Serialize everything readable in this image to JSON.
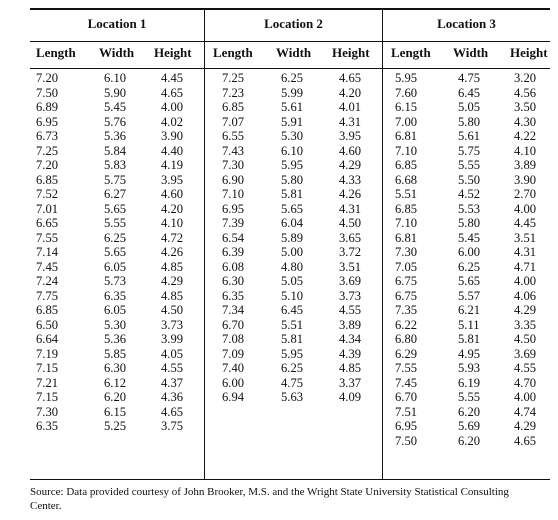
{
  "groups": [
    "Location 1",
    "Location 2",
    "Location 3"
  ],
  "columns": [
    "Length",
    "Width",
    "Height"
  ],
  "location1": {
    "length": [
      "7.20",
      "7.50",
      "6.89",
      "6.95",
      "6.73",
      "7.25",
      "7.20",
      "6.85",
      "7.52",
      "7.01",
      "6.65",
      "7.55",
      "7.14",
      "7.45",
      "7.24",
      "7.75",
      "6.85",
      "6.50",
      "6.64",
      "7.19",
      "7.15",
      "7.21",
      "7.15",
      "7.30",
      "6.35"
    ],
    "width": [
      "6.10",
      "5.90",
      "5.45",
      "5.76",
      "5.36",
      "5.84",
      "5.83",
      "5.75",
      "6.27",
      "5.65",
      "5.55",
      "6.25",
      "5.65",
      "6.05",
      "5.73",
      "6.35",
      "6.05",
      "5.30",
      "5.36",
      "5.85",
      "6.30",
      "6.12",
      "6.20",
      "6.15",
      "5.25"
    ],
    "height": [
      "4.45",
      "4.65",
      "4.00",
      "4.02",
      "3.90",
      "4.40",
      "4.19",
      "3.95",
      "4.60",
      "4.20",
      "4.10",
      "4.72",
      "4.26",
      "4.85",
      "4.29",
      "4.85",
      "4.50",
      "3.73",
      "3.99",
      "4.05",
      "4.55",
      "4.37",
      "4.36",
      "4.65",
      "3.75"
    ]
  },
  "location2": {
    "length": [
      "7.25",
      "7.23",
      "6.85",
      "7.07",
      "6.55",
      "7.43",
      "7.30",
      "6.90",
      "7.10",
      "6.95",
      "7.39",
      "6.54",
      "6.39",
      "6.08",
      "6.30",
      "6.35",
      "7.34",
      "6.70",
      "7.08",
      "7.09",
      "7.40",
      "6.00",
      "6.94"
    ],
    "width": [
      "6.25",
      "5.99",
      "5.61",
      "5.91",
      "5.30",
      "6.10",
      "5.95",
      "5.80",
      "5.81",
      "5.65",
      "6.04",
      "5.89",
      "5.00",
      "4.80",
      "5.05",
      "5.10",
      "6.45",
      "5.51",
      "5.81",
      "5.95",
      "6.25",
      "4.75",
      "5.63"
    ],
    "height": [
      "4.65",
      "4.20",
      "4.01",
      "4.31",
      "3.95",
      "4.60",
      "4.29",
      "4.33",
      "4.26",
      "4.31",
      "4.50",
      "3.65",
      "3.72",
      "3.51",
      "3.69",
      "3.73",
      "4.55",
      "3.89",
      "4.34",
      "4.39",
      "4.85",
      "3.37",
      "4.09"
    ]
  },
  "location3": {
    "length": [
      "5.95",
      "7.60",
      "6.15",
      "7.00",
      "6.81",
      "7.10",
      "6.85",
      "6.68",
      "5.51",
      "6.85",
      "7.10",
      "6.81",
      "7.30",
      "7.05",
      "6.75",
      "6.75",
      "7.35",
      "6.22",
      "6.80",
      "6.29",
      "7.55",
      "7.45",
      "6.70",
      "7.51",
      "6.95",
      "7.50"
    ],
    "width": [
      "4.75",
      "6.45",
      "5.05",
      "5.80",
      "5.61",
      "5.75",
      "5.55",
      "5.50",
      "4.52",
      "5.53",
      "5.80",
      "5.45",
      "6.00",
      "6.25",
      "5.65",
      "5.57",
      "6.21",
      "5.11",
      "5.81",
      "4.95",
      "5.93",
      "6.19",
      "5.55",
      "6.20",
      "5.69",
      "6.20"
    ],
    "height": [
      "3.20",
      "4.56",
      "3.50",
      "4.30",
      "4.22",
      "4.10",
      "3.89",
      "3.90",
      "2.70",
      "4.00",
      "4.45",
      "3.51",
      "4.31",
      "4.71",
      "4.00",
      "4.06",
      "4.29",
      "3.35",
      "4.50",
      "3.69",
      "4.55",
      "4.70",
      "4.00",
      "4.74",
      "4.29",
      "4.65"
    ]
  },
  "source": "Source: Data provided courtesy of John Brooker, M.S. and the Wright State University Statistical Consulting Center."
}
